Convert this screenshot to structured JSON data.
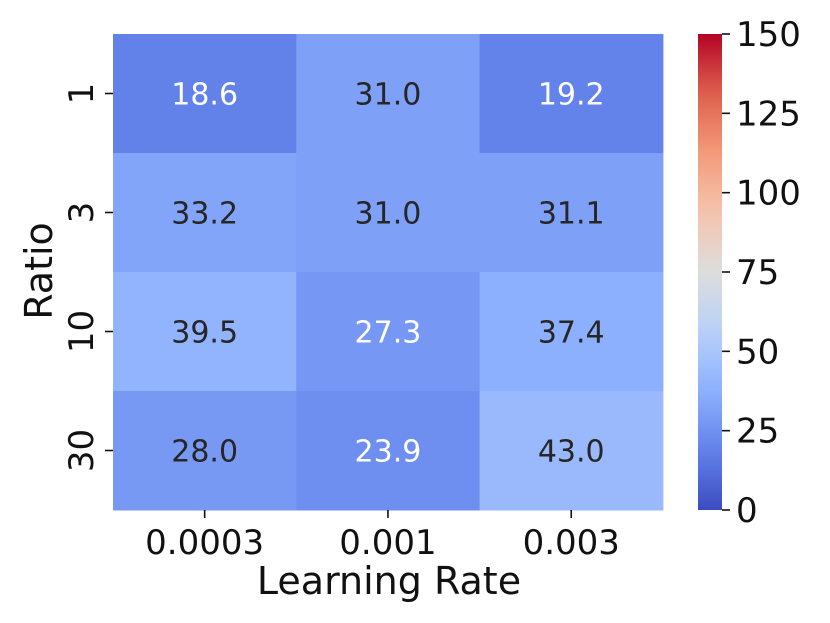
{
  "chart_data": {
    "type": "heatmap",
    "xlabel": "Learning Rate",
    "ylabel": "Ratio",
    "x_categories": [
      "0.0003",
      "0.001",
      "0.003"
    ],
    "y_categories": [
      "1",
      "3",
      "10",
      "30"
    ],
    "values": [
      [
        18.6,
        31.0,
        19.2
      ],
      [
        33.2,
        31.0,
        31.1
      ],
      [
        39.5,
        27.3,
        37.4
      ],
      [
        28.0,
        23.9,
        43.0
      ]
    ],
    "value_labels": [
      [
        "18.6",
        "31.0",
        "19.2"
      ],
      [
        "33.2",
        "31.0",
        "31.1"
      ],
      [
        "39.5",
        "27.3",
        "37.4"
      ],
      [
        "28.0",
        "23.9",
        "43.0"
      ]
    ],
    "colormap": "coolwarm",
    "vmin": 0,
    "vmax": 150,
    "colorbar_ticks": [
      "0",
      "25",
      "50",
      "75",
      "100",
      "125",
      "150"
    ],
    "colors": {
      "low": "#3b4cc0",
      "mid": "#dddddd",
      "high": "#b40426",
      "dark_text": "#262626",
      "light_text": "#ffffff"
    }
  }
}
